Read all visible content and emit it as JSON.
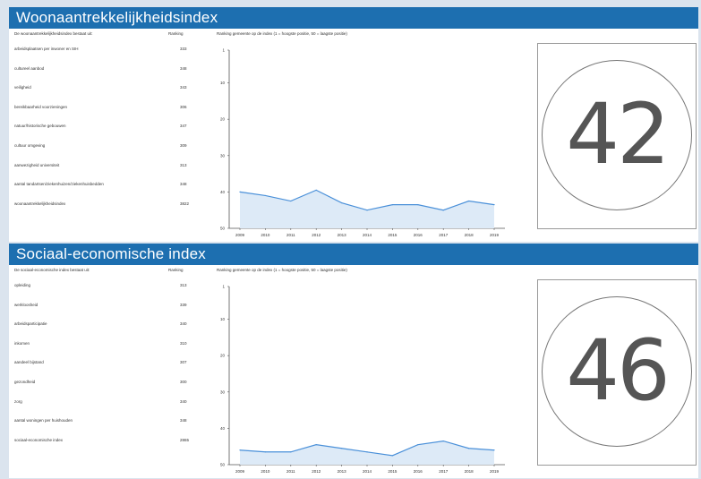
{
  "panels": [
    {
      "title": "Woonaantrekkelijkheidsindex",
      "rows_header": "De woonaantrekkelijkheidsindex bestaat uit:",
      "rank_header": "Ranking",
      "chart_header": "Ranking gemeente op de index (1 = hoogste positie, 50 = laagste positie)",
      "rows": [
        {
          "label": "arbeidsplaatsen per inwoner en SIH",
          "value": "333"
        },
        {
          "label": "cultureel aanbod",
          "value": "348"
        },
        {
          "label": "veiligheid",
          "value": "343"
        },
        {
          "label": "bereikbaarheid voorzieningen",
          "value": "306"
        },
        {
          "label": "natuur/historische gebouwen",
          "value": "347"
        },
        {
          "label": "cultuur omgeving",
          "value": "309"
        },
        {
          "label": "aanwezigheid universiteit",
          "value": "313"
        },
        {
          "label": "aantal tandartsen/ziekenhuizen/ziekenhuisbedden",
          "value": "348"
        },
        {
          "label": "woonaantrekkelijkheidsindex",
          "value": "3822"
        }
      ],
      "score": "42",
      "chart_data": {
        "type": "line",
        "x": [
          "2009",
          "2010",
          "2011",
          "2012",
          "2013",
          "2014",
          "2015",
          "2016",
          "2017",
          "2018",
          "2019"
        ],
        "y_ticks": [
          "1",
          "10",
          "20",
          "30",
          "40",
          "50"
        ],
        "ylim": [
          1,
          50
        ],
        "y_inverted": true,
        "values": [
          40,
          41,
          42.5,
          39.5,
          43,
          45,
          43.5,
          43.5,
          45,
          42.5,
          43.5
        ],
        "line_color": "#4a90d9",
        "fill_color": "#ddeaf7"
      }
    },
    {
      "title": "Sociaal-economische index",
      "rows_header": "De sociaal-economische index bestaat uit:",
      "rank_header": "Ranking",
      "chart_header": "Ranking gemeente op de index (1 = hoogste positie, 50 = laagste positie)",
      "rows": [
        {
          "label": "opleiding",
          "value": "313"
        },
        {
          "label": "werkloosheid",
          "value": "339"
        },
        {
          "label": "arbeidsparticipatie",
          "value": "340"
        },
        {
          "label": "inkomen",
          "value": "310"
        },
        {
          "label": "aandeel bijstand",
          "value": "307"
        },
        {
          "label": "gezondheid",
          "value": "300"
        },
        {
          "label": "zorg",
          "value": "340"
        },
        {
          "label": "aantal woningen per huishouden",
          "value": "348"
        },
        {
          "label": "sociaal-economische index",
          "value": "2865"
        }
      ],
      "score": "46",
      "chart_data": {
        "type": "line",
        "x": [
          "2009",
          "2010",
          "2011",
          "2012",
          "2013",
          "2014",
          "2015",
          "2016",
          "2017",
          "2018",
          "2019"
        ],
        "y_ticks": [
          "1",
          "10",
          "20",
          "30",
          "40",
          "50"
        ],
        "ylim": [
          1,
          50
        ],
        "y_inverted": true,
        "values": [
          46,
          46.5,
          46.5,
          44.5,
          45.5,
          46.5,
          47.5,
          44.5,
          43.5,
          45.5,
          46
        ],
        "line_color": "#4a90d9",
        "fill_color": "#ddeaf7"
      }
    }
  ]
}
